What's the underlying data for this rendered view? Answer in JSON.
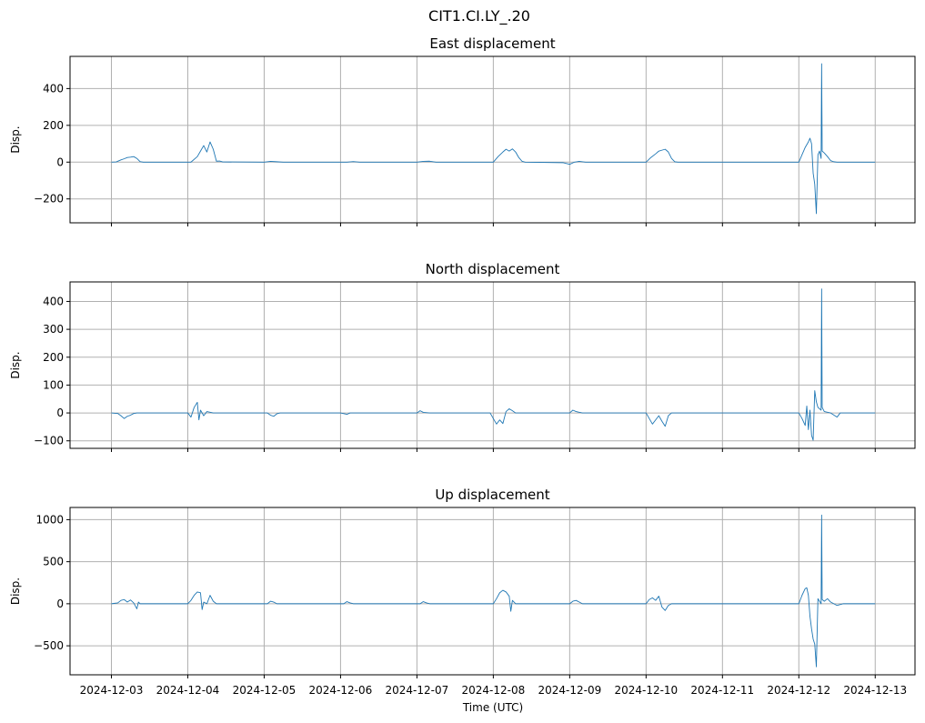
{
  "figure": {
    "suptitle": "CIT1.CI.LY_.20",
    "xlabel": "Time (UTC)",
    "x_ticks": [
      "2024-12-03",
      "2024-12-04",
      "2024-12-05",
      "2024-12-06",
      "2024-12-07",
      "2024-12-08",
      "2024-12-09",
      "2024-12-10",
      "2024-12-11",
      "2024-12-12",
      "2024-12-13"
    ],
    "line_color": "#1f77b4",
    "grid_color": "#b0b0b0",
    "grid": true
  },
  "chart_data": [
    {
      "type": "line",
      "title": "East displacement",
      "ylabel": "Disp.",
      "xlim": [
        "2024-12-02T11:00",
        "2024-12-13T12:30"
      ],
      "ylim": [
        -330,
        575
      ],
      "y_ticks": [
        -200,
        0,
        200,
        400
      ],
      "y_tick_labels": [
        "−200",
        "0",
        "200",
        "400"
      ],
      "series": [
        {
          "values": [
            [
              "2024-12-03T00:00",
              0
            ],
            [
              "2024-12-03T01:30",
              1
            ],
            [
              "2024-12-03T03:00",
              12
            ],
            [
              "2024-12-03T04:00",
              18
            ],
            [
              "2024-12-03T05:00",
              25
            ],
            [
              "2024-12-03T06:00",
              27
            ],
            [
              "2024-12-03T07:00",
              30
            ],
            [
              "2024-12-03T08:00",
              20
            ],
            [
              "2024-12-03T09:00",
              3
            ],
            [
              "2024-12-03T10:00",
              0
            ],
            [
              "2024-12-04T01:00",
              0
            ],
            [
              "2024-12-04T03:00",
              30
            ],
            [
              "2024-12-04T04:00",
              60
            ],
            [
              "2024-12-04T05:00",
              90
            ],
            [
              "2024-12-04T06:00",
              55
            ],
            [
              "2024-12-04T07:00",
              110
            ],
            [
              "2024-12-04T08:00",
              70
            ],
            [
              "2024-12-04T09:00",
              5
            ],
            [
              "2024-12-04T10:00",
              6
            ],
            [
              "2024-12-04T11:00",
              1
            ],
            [
              "2024-12-05T00:00",
              0
            ],
            [
              "2024-12-05T02:00",
              4
            ],
            [
              "2024-12-05T04:00",
              2
            ],
            [
              "2024-12-05T06:00",
              0
            ],
            [
              "2024-12-06T02:00",
              0
            ],
            [
              "2024-12-06T04:00",
              3
            ],
            [
              "2024-12-06T06:00",
              0
            ],
            [
              "2024-12-07T00:00",
              0
            ],
            [
              "2024-12-07T02:00",
              4
            ],
            [
              "2024-12-07T04:00",
              5
            ],
            [
              "2024-12-07T06:00",
              0
            ],
            [
              "2024-12-08T00:00",
              0
            ],
            [
              "2024-12-08T01:30",
              30
            ],
            [
              "2024-12-08T03:00",
              55
            ],
            [
              "2024-12-08T04:00",
              70
            ],
            [
              "2024-12-08T05:00",
              60
            ],
            [
              "2024-12-08T06:00",
              72
            ],
            [
              "2024-12-08T07:00",
              55
            ],
            [
              "2024-12-08T08:00",
              25
            ],
            [
              "2024-12-08T09:00",
              5
            ],
            [
              "2024-12-08T10:00",
              0
            ],
            [
              "2024-12-08T22:00",
              -3
            ],
            [
              "2024-12-09T00:00",
              -12
            ],
            [
              "2024-12-09T01:30",
              0
            ],
            [
              "2024-12-09T03:00",
              4
            ],
            [
              "2024-12-09T05:00",
              0
            ],
            [
              "2024-12-10T00:00",
              0
            ],
            [
              "2024-12-10T01:30",
              25
            ],
            [
              "2024-12-10T03:00",
              45
            ],
            [
              "2024-12-10T04:00",
              60
            ],
            [
              "2024-12-10T05:00",
              65
            ],
            [
              "2024-12-10T06:00",
              70
            ],
            [
              "2024-12-10T07:00",
              55
            ],
            [
              "2024-12-10T08:00",
              20
            ],
            [
              "2024-12-10T09:00",
              2
            ],
            [
              "2024-12-10T10:00",
              0
            ],
            [
              "2024-12-12T00:00",
              0
            ],
            [
              "2024-12-12T01:00",
              40
            ],
            [
              "2024-12-12T02:00",
              80
            ],
            [
              "2024-12-12T03:00",
              110
            ],
            [
              "2024-12-12T03:30",
              130
            ],
            [
              "2024-12-12T04:00",
              100
            ],
            [
              "2024-12-12T04:30",
              -60
            ],
            [
              "2024-12-12T05:00",
              -120
            ],
            [
              "2024-12-12T05:30",
              -280
            ],
            [
              "2024-12-12T06:00",
              40
            ],
            [
              "2024-12-12T06:30",
              60
            ],
            [
              "2024-12-12T07:00",
              20
            ],
            [
              "2024-12-12T07:10",
              535
            ],
            [
              "2024-12-12T07:20",
              60
            ],
            [
              "2024-12-12T08:00",
              50
            ],
            [
              "2024-12-12T09:00",
              30
            ],
            [
              "2024-12-12T10:00",
              8
            ],
            [
              "2024-12-12T11:00",
              2
            ],
            [
              "2024-12-12T12:00",
              0
            ],
            [
              "2024-12-13T00:00",
              0
            ]
          ]
        }
      ]
    },
    {
      "type": "line",
      "title": "North displacement",
      "ylabel": "Disp.",
      "xlim": [
        "2024-12-02T11:00",
        "2024-12-13T12:30"
      ],
      "ylim": [
        -127,
        470
      ],
      "y_ticks": [
        -100,
        0,
        100,
        200,
        300,
        400
      ],
      "y_tick_labels": [
        "−100",
        "0",
        "100",
        "200",
        "300",
        "400"
      ],
      "series": [
        {
          "values": [
            [
              "2024-12-03T00:00",
              0
            ],
            [
              "2024-12-03T02:00",
              -2
            ],
            [
              "2024-12-03T03:00",
              -10
            ],
            [
              "2024-12-03T04:00",
              -20
            ],
            [
              "2024-12-03T05:00",
              -12
            ],
            [
              "2024-12-03T06:00",
              -8
            ],
            [
              "2024-12-03T07:00",
              -2
            ],
            [
              "2024-12-03T08:00",
              0
            ],
            [
              "2024-12-04T00:00",
              0
            ],
            [
              "2024-12-04T01:00",
              -15
            ],
            [
              "2024-12-04T02:00",
              20
            ],
            [
              "2024-12-04T03:00",
              38
            ],
            [
              "2024-12-04T03:30",
              -25
            ],
            [
              "2024-12-04T04:00",
              10
            ],
            [
              "2024-12-04T05:00",
              -10
            ],
            [
              "2024-12-04T06:00",
              5
            ],
            [
              "2024-12-04T08:00",
              0
            ],
            [
              "2024-12-05T01:00",
              0
            ],
            [
              "2024-12-05T02:00",
              -8
            ],
            [
              "2024-12-05T03:00",
              -12
            ],
            [
              "2024-12-05T04:00",
              -3
            ],
            [
              "2024-12-05T05:00",
              0
            ],
            [
              "2024-12-06T00:00",
              0
            ],
            [
              "2024-12-06T02:00",
              -5
            ],
            [
              "2024-12-06T03:00",
              0
            ],
            [
              "2024-12-07T00:00",
              0
            ],
            [
              "2024-12-07T01:00",
              8
            ],
            [
              "2024-12-07T02:00",
              2
            ],
            [
              "2024-12-07T04:00",
              0
            ],
            [
              "2024-12-07T23:00",
              0
            ],
            [
              "2024-12-08T00:00",
              -20
            ],
            [
              "2024-12-08T01:00",
              -40
            ],
            [
              "2024-12-08T02:00",
              -25
            ],
            [
              "2024-12-08T03:00",
              -38
            ],
            [
              "2024-12-08T04:00",
              5
            ],
            [
              "2024-12-08T05:00",
              15
            ],
            [
              "2024-12-08T06:00",
              8
            ],
            [
              "2024-12-08T07:00",
              0
            ],
            [
              "2024-12-09T00:00",
              0
            ],
            [
              "2024-12-09T01:00",
              10
            ],
            [
              "2024-12-09T02:00",
              5
            ],
            [
              "2024-12-09T04:00",
              0
            ],
            [
              "2024-12-10T00:00",
              0
            ],
            [
              "2024-12-10T01:00",
              -20
            ],
            [
              "2024-12-10T02:00",
              -40
            ],
            [
              "2024-12-10T03:00",
              -25
            ],
            [
              "2024-12-10T04:00",
              -10
            ],
            [
              "2024-12-10T05:00",
              -30
            ],
            [
              "2024-12-10T06:00",
              -48
            ],
            [
              "2024-12-10T07:00",
              -10
            ],
            [
              "2024-12-10T08:00",
              0
            ],
            [
              "2024-12-12T00:00",
              0
            ],
            [
              "2024-12-12T01:00",
              -20
            ],
            [
              "2024-12-12T02:00",
              -45
            ],
            [
              "2024-12-12T02:30",
              25
            ],
            [
              "2024-12-12T03:00",
              -60
            ],
            [
              "2024-12-12T03:30",
              10
            ],
            [
              "2024-12-12T04:00",
              -80
            ],
            [
              "2024-12-12T04:30",
              -98
            ],
            [
              "2024-12-12T05:00",
              80
            ],
            [
              "2024-12-12T05:30",
              40
            ],
            [
              "2024-12-12T06:00",
              20
            ],
            [
              "2024-12-12T07:00",
              10
            ],
            [
              "2024-12-12T07:10",
              445
            ],
            [
              "2024-12-12T07:20",
              20
            ],
            [
              "2024-12-12T08:00",
              5
            ],
            [
              "2024-12-12T10:00",
              0
            ],
            [
              "2024-12-12T12:00",
              -15
            ],
            [
              "2024-12-12T13:00",
              0
            ],
            [
              "2024-12-13T00:00",
              0
            ]
          ]
        }
      ]
    },
    {
      "type": "line",
      "title": "Up displacement",
      "ylabel": "Disp.",
      "xlim": [
        "2024-12-02T11:00",
        "2024-12-13T12:30"
      ],
      "ylim": [
        -845,
        1145
      ],
      "y_ticks": [
        -500,
        0,
        500,
        1000
      ],
      "y_tick_labels": [
        "−500",
        "0",
        "500",
        "1000"
      ],
      "series": [
        {
          "values": [
            [
              "2024-12-03T00:00",
              0
            ],
            [
              "2024-12-03T02:00",
              10
            ],
            [
              "2024-12-03T03:00",
              40
            ],
            [
              "2024-12-03T04:00",
              50
            ],
            [
              "2024-12-03T05:00",
              20
            ],
            [
              "2024-12-03T06:00",
              45
            ],
            [
              "2024-12-03T07:00",
              10
            ],
            [
              "2024-12-03T08:00",
              -60
            ],
            [
              "2024-12-03T08:30",
              20
            ],
            [
              "2024-12-03T09:00",
              0
            ],
            [
              "2024-12-04T00:00",
              0
            ],
            [
              "2024-12-04T01:00",
              40
            ],
            [
              "2024-12-04T02:00",
              100
            ],
            [
              "2024-12-04T03:00",
              140
            ],
            [
              "2024-12-04T04:00",
              130
            ],
            [
              "2024-12-04T04:30",
              -70
            ],
            [
              "2024-12-04T05:00",
              20
            ],
            [
              "2024-12-04T06:00",
              0
            ],
            [
              "2024-12-04T07:00",
              100
            ],
            [
              "2024-12-04T08:00",
              30
            ],
            [
              "2024-12-04T09:00",
              0
            ],
            [
              "2024-12-05T01:00",
              0
            ],
            [
              "2024-12-05T02:00",
              30
            ],
            [
              "2024-12-05T03:00",
              20
            ],
            [
              "2024-12-05T04:00",
              0
            ],
            [
              "2024-12-06T01:00",
              0
            ],
            [
              "2024-12-06T02:00",
              25
            ],
            [
              "2024-12-06T03:00",
              10
            ],
            [
              "2024-12-06T04:00",
              0
            ],
            [
              "2024-12-07T01:00",
              0
            ],
            [
              "2024-12-07T02:00",
              25
            ],
            [
              "2024-12-07T03:00",
              10
            ],
            [
              "2024-12-07T04:00",
              0
            ],
            [
              "2024-12-08T00:00",
              0
            ],
            [
              "2024-12-08T01:00",
              60
            ],
            [
              "2024-12-08T02:00",
              130
            ],
            [
              "2024-12-08T03:00",
              160
            ],
            [
              "2024-12-08T04:00",
              140
            ],
            [
              "2024-12-08T05:00",
              90
            ],
            [
              "2024-12-08T05:30",
              -90
            ],
            [
              "2024-12-08T06:00",
              40
            ],
            [
              "2024-12-08T07:00",
              0
            ],
            [
              "2024-12-09T00:00",
              0
            ],
            [
              "2024-12-09T01:00",
              30
            ],
            [
              "2024-12-09T02:00",
              40
            ],
            [
              "2024-12-09T03:00",
              20
            ],
            [
              "2024-12-09T04:00",
              0
            ],
            [
              "2024-12-10T00:00",
              0
            ],
            [
              "2024-12-10T01:00",
              50
            ],
            [
              "2024-12-10T02:00",
              70
            ],
            [
              "2024-12-10T03:00",
              40
            ],
            [
              "2024-12-10T04:00",
              90
            ],
            [
              "2024-12-10T05:00",
              -40
            ],
            [
              "2024-12-10T06:00",
              -80
            ],
            [
              "2024-12-10T07:00",
              -20
            ],
            [
              "2024-12-10T08:00",
              0
            ],
            [
              "2024-12-12T00:00",
              0
            ],
            [
              "2024-12-12T01:00",
              100
            ],
            [
              "2024-12-12T02:00",
              180
            ],
            [
              "2024-12-12T02:30",
              190
            ],
            [
              "2024-12-12T03:00",
              100
            ],
            [
              "2024-12-12T03:30",
              -150
            ],
            [
              "2024-12-12T04:00",
              -300
            ],
            [
              "2024-12-12T04:30",
              -420
            ],
            [
              "2024-12-12T05:00",
              -480
            ],
            [
              "2024-12-12T05:30",
              -750
            ],
            [
              "2024-12-12T06:00",
              60
            ],
            [
              "2024-12-12T07:00",
              0
            ],
            [
              "2024-12-12T07:10",
              1055
            ],
            [
              "2024-12-12T07:20",
              50
            ],
            [
              "2024-12-12T08:00",
              30
            ],
            [
              "2024-12-12T09:00",
              60
            ],
            [
              "2024-12-12T10:00",
              20
            ],
            [
              "2024-12-12T12:00",
              -20
            ],
            [
              "2024-12-12T14:00",
              0
            ],
            [
              "2024-12-13T00:00",
              0
            ]
          ]
        }
      ]
    }
  ]
}
